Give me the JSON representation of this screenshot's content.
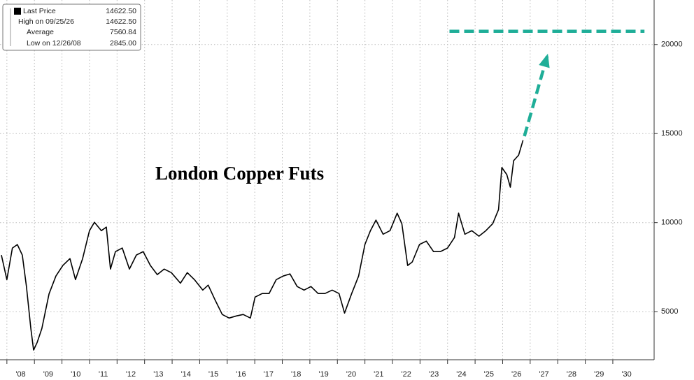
{
  "chart_data": {
    "type": "line",
    "annotation": "London Copper Futs",
    "x": [
      2007.8,
      2008.0,
      2008.2,
      2008.38,
      2008.56,
      2008.71,
      2008.87,
      2008.97,
      2009.1,
      2009.27,
      2009.53,
      2009.78,
      2010.03,
      2010.29,
      2010.49,
      2010.75,
      2011.0,
      2011.18,
      2011.43,
      2011.61,
      2011.76,
      2011.94,
      2012.19,
      2012.45,
      2012.7,
      2012.95,
      2013.21,
      2013.46,
      2013.71,
      2013.97,
      2014.3,
      2014.55,
      2014.81,
      2015.11,
      2015.31,
      2015.57,
      2015.82,
      2016.07,
      2016.33,
      2016.58,
      2016.84,
      2017.01,
      2017.27,
      2017.52,
      2017.78,
      2018.03,
      2018.28,
      2018.54,
      2018.79,
      2019.04,
      2019.3,
      2019.55,
      2019.81,
      2020.06,
      2020.26,
      2020.52,
      2020.77,
      2021.0,
      2021.2,
      2021.4,
      2021.66,
      2021.91,
      2022.17,
      2022.34,
      2022.55,
      2022.72,
      2022.98,
      2023.23,
      2023.49,
      2023.74,
      2024.0,
      2024.25,
      2024.4,
      2024.63,
      2024.88,
      2025.14,
      2025.39,
      2025.64,
      2025.85,
      2025.97,
      2026.15,
      2026.28,
      2026.4,
      2026.58,
      2026.74
    ],
    "series": [
      {
        "name": "Last Price",
        "color": "#000000",
        "values": [
          8177,
          6800,
          8570,
          8766,
          8177,
          6410,
          4050,
          2845,
          3270,
          4050,
          6000,
          7000,
          7590,
          7980,
          6800,
          7980,
          9550,
          10020,
          9550,
          9750,
          7390,
          8370,
          8570,
          7390,
          8180,
          8370,
          7590,
          7080,
          7390,
          7190,
          6600,
          7190,
          6800,
          6210,
          6490,
          5620,
          4840,
          4640,
          4760,
          4840,
          4640,
          5820,
          6020,
          6020,
          6800,
          7000,
          7120,
          6410,
          6210,
          6410,
          6020,
          6020,
          6210,
          6020,
          4920,
          6020,
          7000,
          8770,
          9550,
          10140,
          9350,
          9550,
          10530,
          9940,
          7590,
          7790,
          8770,
          8960,
          8370,
          8370,
          8570,
          9160,
          10530,
          9350,
          9550,
          9240,
          9550,
          9940,
          10730,
          13090,
          12700,
          11990,
          13480,
          13790,
          14622.5
        ],
        "last": {
          "value": 14622.5,
          "label": "14622.50"
        }
      }
    ],
    "stats": [
      {
        "name": "High on 09/25/26",
        "value": 14622.5,
        "label": "14622.50"
      },
      {
        "name": "Average",
        "value": 7560.84,
        "label": "7560.84"
      },
      {
        "name": "Low on 12/26/08",
        "value": 2845,
        "label": "2845.00"
      }
    ],
    "projection": {
      "color": "#1fae98",
      "arrow": {
        "x": [
          2026.79,
          2027.62
        ],
        "values": [
          14850,
          19370
        ]
      },
      "level": {
        "x": [
          2024.07,
          2031.15
        ],
        "values": [
          20746,
          20746
        ]
      }
    },
    "xlim": [
      2007.75,
      2031.5
    ],
    "xticks": [
      {
        "value": 2008,
        "label": "'08"
      },
      {
        "value": 2009,
        "label": "'09"
      },
      {
        "value": 2010,
        "label": "'10"
      },
      {
        "value": 2011,
        "label": "'11"
      },
      {
        "value": 2012,
        "label": "'12"
      },
      {
        "value": 2013,
        "label": "'13"
      },
      {
        "value": 2014,
        "label": "'14"
      },
      {
        "value": 2015,
        "label": "'15"
      },
      {
        "value": 2016,
        "label": "'16"
      },
      {
        "value": 2017,
        "label": "'17"
      },
      {
        "value": 2018,
        "label": "'18"
      },
      {
        "value": 2019,
        "label": "'19"
      },
      {
        "value": 2020,
        "label": "'20"
      },
      {
        "value": 2021,
        "label": "'21"
      },
      {
        "value": 2022,
        "label": "'22"
      },
      {
        "value": 2023,
        "label": "'23"
      },
      {
        "value": 2024,
        "label": "'24"
      },
      {
        "value": 2025,
        "label": "'25"
      },
      {
        "value": 2026,
        "label": "'26"
      },
      {
        "value": 2027,
        "label": "'27"
      },
      {
        "value": 2028,
        "label": "'28"
      },
      {
        "value": 2029,
        "label": "'29"
      },
      {
        "value": 2030,
        "label": "'30"
      }
    ],
    "ylim": [
      2300,
      22500
    ],
    "yticks": [
      5000,
      10000,
      15000,
      20000
    ],
    "grid": true
  }
}
